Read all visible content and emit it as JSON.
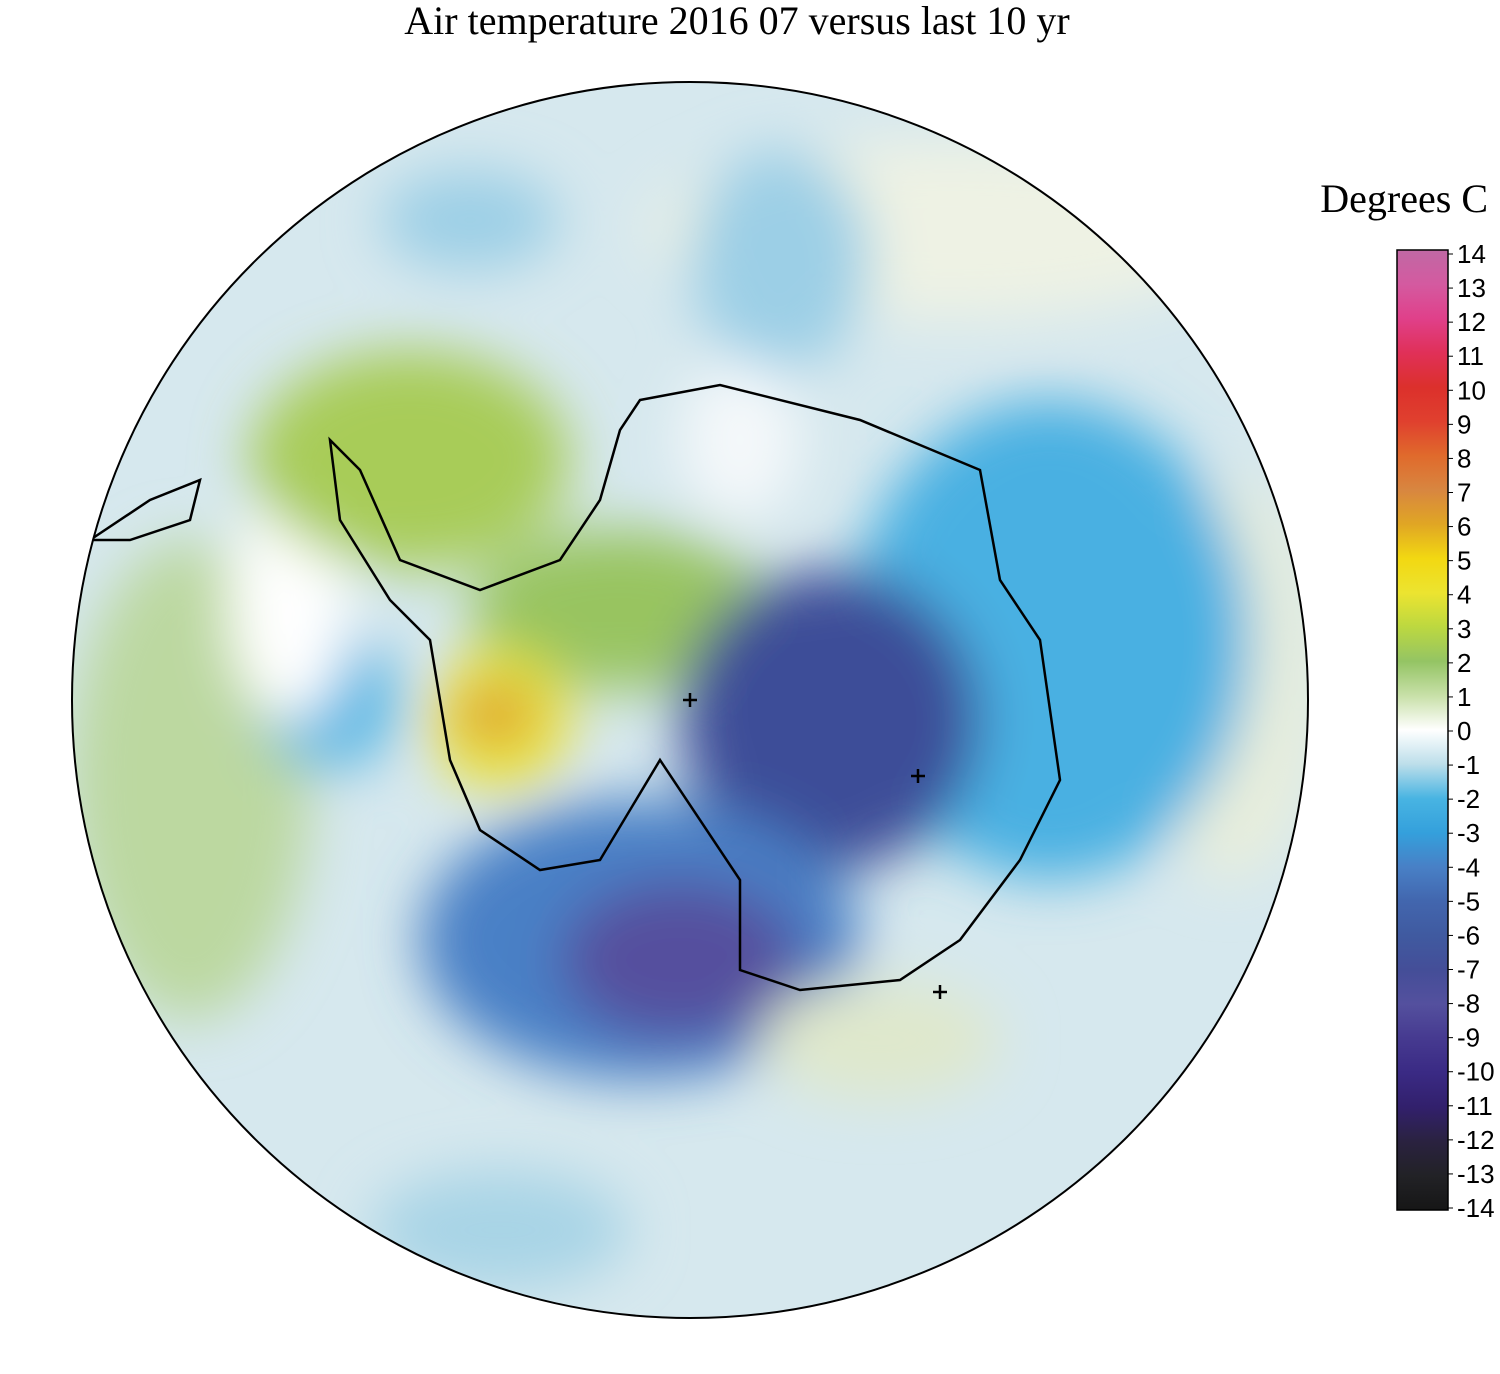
{
  "title": "Air temperature 2016 07 versus last 10 yr",
  "colorbar": {
    "label": "Degrees C",
    "clim": [
      -14,
      14
    ],
    "ticks": [
      -14,
      -13,
      -12,
      -11,
      -10,
      -9,
      -8,
      -7,
      -6,
      -5,
      -4,
      -3,
      -2,
      -1,
      0,
      1,
      2,
      3,
      4,
      5,
      6,
      7,
      8,
      9,
      10,
      11,
      12,
      13,
      14
    ],
    "colors": [
      "#161616",
      "#222226",
      "#2a2240",
      "#32206c",
      "#3a2a84",
      "#463a90",
      "#54509e",
      "#444e98",
      "#405aa0",
      "#4266ae",
      "#4880c6",
      "#34a0dc",
      "#48b4e2",
      "#bcdeea",
      "#ffffff",
      "#c8e0a8",
      "#94c464",
      "#bcd840",
      "#ece430",
      "#f2d812",
      "#e0a624",
      "#d88640",
      "#e06a2c",
      "#e0402e",
      "#dc302c",
      "#e03058",
      "#e0408a",
      "#d45aa0",
      "#c068a4"
    ]
  }
}
